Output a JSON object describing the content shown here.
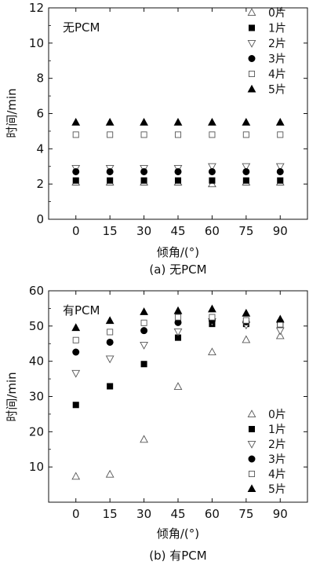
{
  "chart_data": [
    {
      "type": "scatter",
      "inset_title": "无PCM",
      "caption": "(a) 无PCM",
      "xlabel": "倾角/(°)",
      "ylabel": "时间/min",
      "x": [
        0,
        15,
        30,
        45,
        60,
        75,
        90
      ],
      "xticks": [
        "0",
        "15",
        "30",
        "45",
        "60",
        "75",
        "90"
      ],
      "ylim": [
        0,
        12
      ],
      "yticks": [
        "0",
        "2",
        "4",
        "6",
        "8",
        "10",
        "12"
      ],
      "legend_position": "top-right",
      "series": [
        {
          "name": "0片",
          "marker": "triangle-up-open",
          "values": [
            2.1,
            2.1,
            2.1,
            2.1,
            2.0,
            2.1,
            2.1
          ]
        },
        {
          "name": "1片",
          "marker": "square-filled",
          "values": [
            2.2,
            2.2,
            2.2,
            2.2,
            2.2,
            2.2,
            2.2
          ]
        },
        {
          "name": "2片",
          "marker": "triangle-down-open",
          "values": [
            2.9,
            2.9,
            2.9,
            2.9,
            3.0,
            3.0,
            3.0
          ]
        },
        {
          "name": "3片",
          "marker": "circle-filled",
          "values": [
            2.7,
            2.7,
            2.7,
            2.7,
            2.7,
            2.7,
            2.7
          ]
        },
        {
          "name": "4片",
          "marker": "square-open",
          "values": [
            4.8,
            4.8,
            4.8,
            4.8,
            4.8,
            4.8,
            4.8
          ]
        },
        {
          "name": "5片",
          "marker": "triangle-up-filled",
          "values": [
            5.5,
            5.5,
            5.5,
            5.5,
            5.5,
            5.5,
            5.5
          ]
        }
      ]
    },
    {
      "type": "scatter",
      "inset_title": "有PCM",
      "caption": "(b) 有PCM",
      "xlabel": "倾角/(°)",
      "ylabel": "时间/min",
      "x": [
        0,
        15,
        30,
        45,
        60,
        75,
        90
      ],
      "xticks": [
        "0",
        "15",
        "30",
        "45",
        "60",
        "75",
        "90"
      ],
      "ylim": [
        0,
        60
      ],
      "yticks": [
        "10",
        "20",
        "30",
        "40",
        "50",
        "60"
      ],
      "legend_position": "bottom-right",
      "series": [
        {
          "name": "0片",
          "marker": "triangle-up-open",
          "values": [
            7.3,
            7.9,
            17.8,
            32.8,
            42.6,
            46.1,
            47.2
          ]
        },
        {
          "name": "1片",
          "marker": "square-filled",
          "values": [
            27.6,
            32.9,
            39.2,
            46.7,
            50.6,
            50.6,
            50.1
          ]
        },
        {
          "name": "2片",
          "marker": "triangle-down-open",
          "values": [
            36.6,
            40.7,
            44.6,
            48.4,
            51.3,
            50.3,
            48.7
          ]
        },
        {
          "name": "3片",
          "marker": "circle-filled",
          "values": [
            42.6,
            45.4,
            48.7,
            51.0,
            51.6,
            51.2,
            51.2
          ]
        },
        {
          "name": "4片",
          "marker": "square-open",
          "values": [
            46.0,
            48.3,
            50.9,
            52.5,
            52.5,
            51.6,
            50.5
          ]
        },
        {
          "name": "5片",
          "marker": "triangle-up-filled",
          "values": [
            49.5,
            51.5,
            54.0,
            54.3,
            54.8,
            53.6,
            51.9
          ]
        }
      ]
    }
  ]
}
